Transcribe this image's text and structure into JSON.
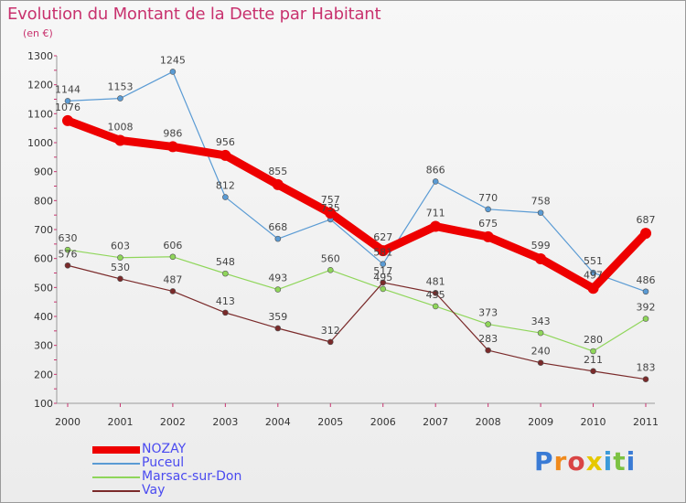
{
  "title": "Evolution du Montant de la Dette par Habitant",
  "subtitle": "(en €)",
  "brand": {
    "p": "P",
    "r": "r",
    "o": "o",
    "x": "x",
    "i1": "i",
    "t": "t",
    "i2": "i"
  },
  "chart_data": {
    "type": "line",
    "categories": [
      "2000",
      "2001",
      "2002",
      "2003",
      "2004",
      "2005",
      "2006",
      "2007",
      "2008",
      "2009",
      "2010",
      "2011"
    ],
    "ylim": [
      100,
      1300
    ],
    "yticks": [
      100,
      200,
      300,
      400,
      500,
      600,
      700,
      800,
      900,
      1000,
      1100,
      1200,
      1300
    ],
    "grid": false,
    "legend_position": "bottom-left",
    "series": [
      {
        "name": "Puceul",
        "color": "#5a9bd4",
        "values": [
          1144,
          1153,
          1245,
          812,
          668,
          735,
          581,
          866,
          770,
          758,
          551,
          486
        ],
        "labels": [
          "1144",
          "1153",
          "1245",
          "812",
          "668",
          "735",
          "581",
          "866",
          "770",
          "758",
          "551",
          "486"
        ]
      },
      {
        "name": "Marsac-sur-Don",
        "color": "#8fd65a",
        "values": [
          630,
          603,
          606,
          548,
          493,
          560,
          495,
          435,
          373,
          343,
          280,
          392
        ],
        "labels": [
          "630",
          "603",
          "606",
          "548",
          "493",
          "560",
          "495",
          "435",
          "373",
          "343",
          "280",
          "392"
        ]
      },
      {
        "name": "Vay",
        "color": "#7a2a2a",
        "values": [
          576,
          530,
          487,
          413,
          359,
          312,
          517,
          481,
          283,
          240,
          211,
          183
        ],
        "labels": [
          "576",
          "530",
          "487",
          "413",
          "359",
          "312",
          "517",
          "481",
          "283",
          "240",
          "211",
          "183"
        ]
      },
      {
        "name": "NOZAY",
        "color": "#ee0000",
        "values": [
          1076,
          1008,
          986,
          956,
          855,
          757,
          627,
          711,
          675,
          599,
          497,
          687
        ],
        "labels": [
          "1076",
          "1008",
          "986",
          "956",
          "855",
          "757",
          "627",
          "711",
          "675",
          "599",
          "497",
          "687"
        ]
      }
    ],
    "legend_order": [
      "NOZAY",
      "Puceul",
      "Marsac-sur-Don",
      "Vay"
    ]
  }
}
